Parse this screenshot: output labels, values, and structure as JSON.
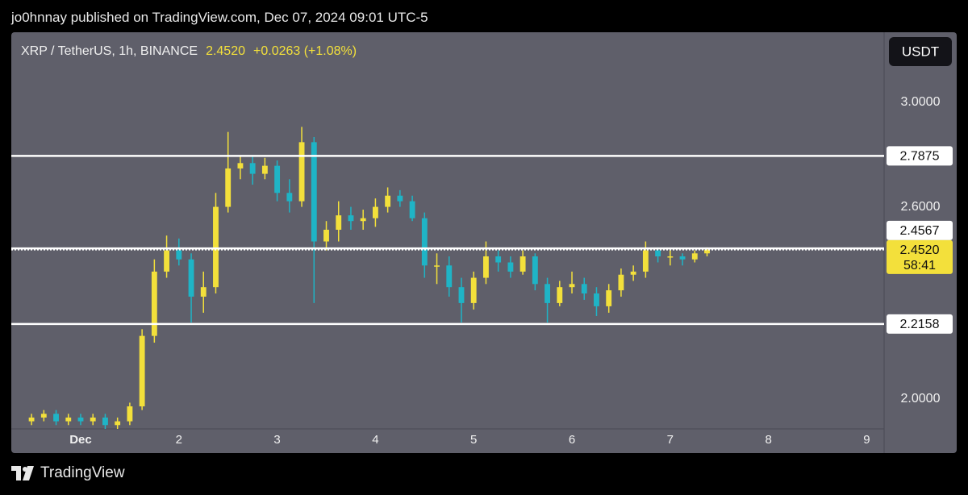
{
  "chart_data": {
    "type": "candlestick",
    "header": "jo0hnnay published on TradingView.com, Dec 07, 2024 09:01 UTC-5",
    "title": "XRP / TetherUS, 1h, BINANCE",
    "last_price": {
      "value": 2.452,
      "label": "2.4520"
    },
    "change": "+0.0263 (+1.08%)",
    "currency": "USDT",
    "countdown": "58:41",
    "logo": "TradingView",
    "up_color": "#f3e03b",
    "down_color": "#1fb4c6",
    "log_scale": true,
    "ylim": [
      1.92,
      3.3
    ],
    "yticks": [
      {
        "value": 3,
        "label": "3.0000"
      },
      {
        "value": 2.6,
        "label": "2.6000"
      },
      {
        "value": 2,
        "label": "2.0000"
      }
    ],
    "xlim": [
      0.294,
      9.177
    ],
    "xticks": [
      {
        "value": 1,
        "label": "Dec"
      },
      2,
      3,
      4,
      5,
      6,
      7,
      8,
      9
    ],
    "levels": [
      {
        "value": 2.7875,
        "label": "2.7875"
      },
      {
        "value": 2.4567,
        "label": "2.4567"
      },
      {
        "value": 2.2158,
        "label": "2.2158"
      }
    ],
    "x": [
      0.5,
      0.625,
      0.75,
      0.875,
      1.0,
      1.125,
      1.25,
      1.375,
      1.5,
      1.625,
      1.75,
      1.875,
      2.0,
      2.125,
      2.25,
      2.375,
      2.5,
      2.625,
      2.75,
      2.875,
      3.0,
      3.125,
      3.25,
      3.375,
      3.5,
      3.625,
      3.75,
      3.875,
      4.0,
      4.125,
      4.25,
      4.375,
      4.5,
      4.625,
      4.75,
      4.875,
      5.0,
      5.125,
      5.25,
      5.375,
      5.5,
      5.625,
      5.75,
      5.875,
      6.0,
      6.125,
      6.25,
      6.375,
      6.5,
      6.625,
      6.75,
      6.875,
      7.0,
      7.125,
      7.25,
      7.375
    ],
    "open": [
      1.94,
      1.95,
      1.96,
      1.94,
      1.95,
      1.94,
      1.95,
      1.93,
      1.94,
      1.98,
      2.18,
      2.38,
      2.45,
      2.42,
      2.3,
      2.33,
      2.6,
      2.74,
      2.76,
      2.72,
      2.75,
      2.65,
      2.62,
      2.84,
      2.48,
      2.52,
      2.57,
      2.55,
      2.56,
      2.6,
      2.64,
      2.62,
      2.56,
      2.4,
      2.4,
      2.33,
      2.28,
      2.36,
      2.43,
      2.41,
      2.38,
      2.43,
      2.34,
      2.28,
      2.33,
      2.34,
      2.31,
      2.27,
      2.32,
      2.37,
      2.38,
      2.45,
      2.43,
      2.43,
      2.42,
      2.44
    ],
    "high": [
      1.96,
      1.97,
      1.97,
      1.96,
      1.96,
      1.96,
      1.96,
      1.95,
      1.99,
      2.2,
      2.42,
      2.5,
      2.49,
      2.44,
      2.38,
      2.65,
      2.88,
      2.79,
      2.79,
      2.78,
      2.77,
      2.7,
      2.9,
      2.86,
      2.55,
      2.62,
      2.6,
      2.59,
      2.63,
      2.67,
      2.66,
      2.64,
      2.58,
      2.44,
      2.43,
      2.36,
      2.38,
      2.48,
      2.45,
      2.43,
      2.45,
      2.44,
      2.36,
      2.35,
      2.38,
      2.36,
      2.33,
      2.34,
      2.39,
      2.4,
      2.48,
      2.46,
      2.45,
      2.44,
      2.45,
      2.46
    ],
    "low": [
      1.93,
      1.94,
      1.93,
      1.93,
      1.93,
      1.93,
      1.92,
      1.92,
      1.93,
      1.97,
      2.16,
      2.36,
      2.4,
      2.22,
      2.25,
      2.31,
      2.58,
      2.7,
      2.68,
      2.7,
      2.62,
      2.58,
      2.6,
      2.28,
      2.45,
      2.48,
      2.52,
      2.52,
      2.53,
      2.58,
      2.6,
      2.55,
      2.36,
      2.34,
      2.3,
      2.22,
      2.26,
      2.34,
      2.38,
      2.36,
      2.37,
      2.32,
      2.22,
      2.27,
      2.31,
      2.29,
      2.24,
      2.25,
      2.3,
      2.35,
      2.36,
      2.41,
      2.4,
      2.4,
      2.41,
      2.43
    ],
    "close": [
      1.95,
      1.96,
      1.94,
      1.95,
      1.94,
      1.95,
      1.93,
      1.94,
      1.98,
      2.18,
      2.38,
      2.45,
      2.42,
      2.3,
      2.33,
      2.6,
      2.74,
      2.76,
      2.72,
      2.75,
      2.65,
      2.62,
      2.84,
      2.48,
      2.52,
      2.57,
      2.55,
      2.56,
      2.6,
      2.64,
      2.62,
      2.56,
      2.4,
      2.4,
      2.33,
      2.28,
      2.36,
      2.43,
      2.41,
      2.38,
      2.43,
      2.34,
      2.28,
      2.33,
      2.34,
      2.31,
      2.27,
      2.32,
      2.37,
      2.38,
      2.45,
      2.43,
      2.43,
      2.42,
      2.44,
      2.452
    ]
  }
}
